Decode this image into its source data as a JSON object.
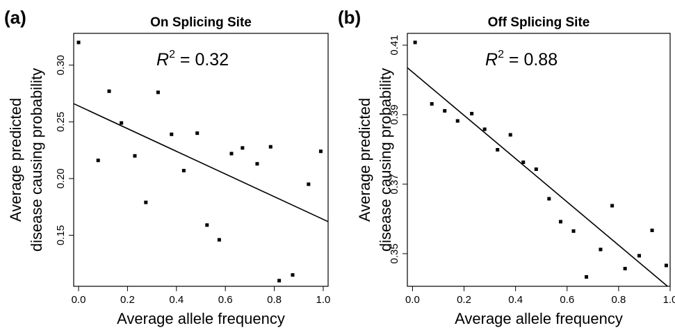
{
  "chart_data": [
    {
      "type": "scatter",
      "panel": "(a)",
      "title": "On Splicing Site",
      "xlabel": "Average allele frequency",
      "ylabel_lines": [
        "Average predicted",
        "disease causing probability"
      ],
      "annotation": {
        "base": "R",
        "sup": "2",
        "rest": " = 0.32"
      },
      "xlim": [
        -0.02,
        1.02
      ],
      "ylim": [
        0.105,
        0.328
      ],
      "xticks": [
        0.0,
        0.2,
        0.4,
        0.6,
        0.8,
        1.0
      ],
      "xtick_labels": [
        "0.0",
        "0.2",
        "0.4",
        "0.6",
        "0.8",
        "1.0"
      ],
      "yticks": [
        0.15,
        0.2,
        0.25,
        0.3
      ],
      "ytick_labels": [
        "0.15",
        "0.20",
        "0.25",
        "0.30"
      ],
      "grid": false,
      "fit_line": {
        "x": [
          -0.02,
          1.02
        ],
        "y": [
          0.266,
          0.162
        ]
      },
      "points": [
        {
          "x": 0.0,
          "y": 0.32
        },
        {
          "x": 0.08,
          "y": 0.216
        },
        {
          "x": 0.125,
          "y": 0.277
        },
        {
          "x": 0.175,
          "y": 0.249
        },
        {
          "x": 0.23,
          "y": 0.22
        },
        {
          "x": 0.275,
          "y": 0.179
        },
        {
          "x": 0.325,
          "y": 0.276
        },
        {
          "x": 0.38,
          "y": 0.239
        },
        {
          "x": 0.43,
          "y": 0.207
        },
        {
          "x": 0.485,
          "y": 0.24
        },
        {
          "x": 0.525,
          "y": 0.159
        },
        {
          "x": 0.575,
          "y": 0.146
        },
        {
          "x": 0.625,
          "y": 0.222
        },
        {
          "x": 0.67,
          "y": 0.227
        },
        {
          "x": 0.73,
          "y": 0.213
        },
        {
          "x": 0.785,
          "y": 0.228
        },
        {
          "x": 0.82,
          "y": 0.11
        },
        {
          "x": 0.875,
          "y": 0.115
        },
        {
          "x": 0.94,
          "y": 0.195
        },
        {
          "x": 0.99,
          "y": 0.224
        }
      ]
    },
    {
      "type": "scatter",
      "panel": "(b)",
      "title": "Off Splicing Site",
      "xlabel": "Average allele frequency",
      "ylabel_lines": [
        "Average predicted",
        "disease causing probability"
      ],
      "annotation": {
        "base": "R",
        "sup": "2",
        "rest": " = 0.88"
      },
      "xlim": [
        -0.02,
        1.0
      ],
      "ylim": [
        0.3406,
        0.4134
      ],
      "xticks": [
        0.0,
        0.2,
        0.4,
        0.6,
        0.8,
        1.0
      ],
      "xtick_labels": [
        "0.0",
        "0.2",
        "0.4",
        "0.6",
        "0.8",
        "1.0"
      ],
      "yticks": [
        0.35,
        0.37,
        0.39,
        0.41
      ],
      "ytick_labels": [
        "0.35",
        "0.37",
        "0.39",
        "0.41"
      ],
      "grid": false,
      "fit_line": {
        "x": [
          -0.02,
          0.99
        ],
        "y": [
          0.4035,
          0.3406
        ]
      },
      "points": [
        {
          "x": 0.01,
          "y": 0.4108
        },
        {
          "x": 0.075,
          "y": 0.3931
        },
        {
          "x": 0.125,
          "y": 0.3911
        },
        {
          "x": 0.175,
          "y": 0.3882
        },
        {
          "x": 0.23,
          "y": 0.3903
        },
        {
          "x": 0.28,
          "y": 0.3858
        },
        {
          "x": 0.33,
          "y": 0.3799
        },
        {
          "x": 0.38,
          "y": 0.3842
        },
        {
          "x": 0.43,
          "y": 0.3763
        },
        {
          "x": 0.48,
          "y": 0.3743
        },
        {
          "x": 0.53,
          "y": 0.3658
        },
        {
          "x": 0.575,
          "y": 0.3592
        },
        {
          "x": 0.625,
          "y": 0.3565
        },
        {
          "x": 0.675,
          "y": 0.3433
        },
        {
          "x": 0.73,
          "y": 0.3512
        },
        {
          "x": 0.775,
          "y": 0.3638
        },
        {
          "x": 0.825,
          "y": 0.3457
        },
        {
          "x": 0.88,
          "y": 0.3494
        },
        {
          "x": 0.93,
          "y": 0.3567
        },
        {
          "x": 0.985,
          "y": 0.3466
        }
      ]
    }
  ]
}
